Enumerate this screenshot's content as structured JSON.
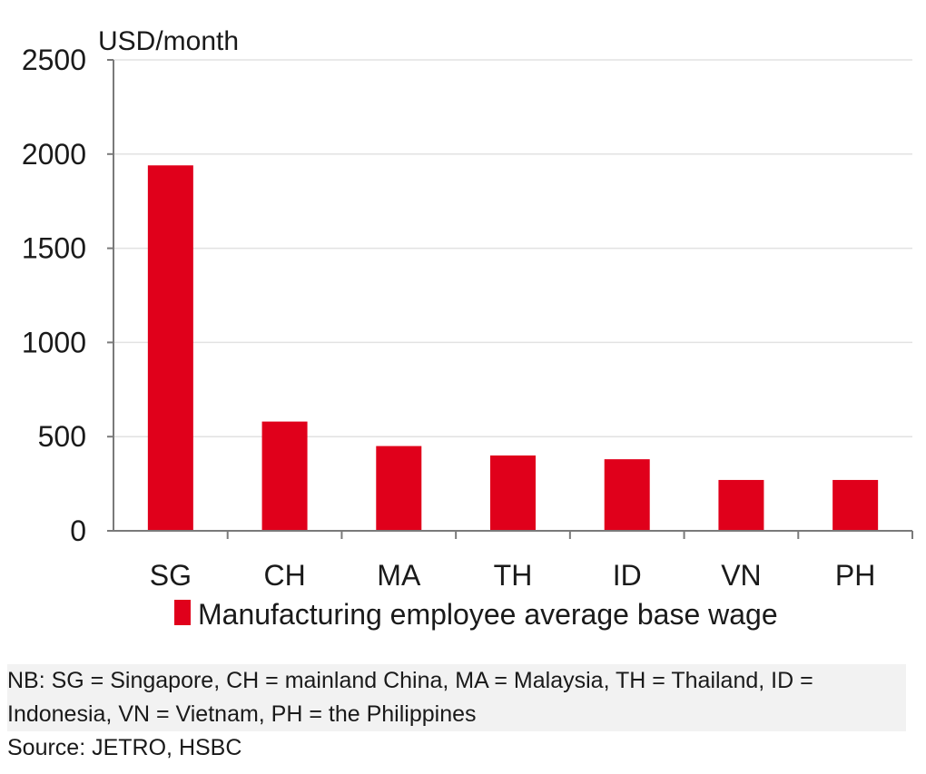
{
  "chart_data": {
    "type": "bar",
    "ylabel": "USD/month",
    "xlabel": "",
    "ylim": [
      0,
      2500
    ],
    "yticks": [
      0,
      500,
      1000,
      1500,
      2000,
      2500
    ],
    "categories": [
      "SG",
      "CH",
      "MA",
      "TH",
      "ID",
      "VN",
      "PH"
    ],
    "series": [
      {
        "name": "Manufacturing employee average base wage",
        "values": [
          1940,
          580,
          450,
          400,
          380,
          270,
          270
        ],
        "color": "#e0001b"
      }
    ],
    "grid": true,
    "legend_position": "bottom"
  },
  "notes": {
    "nb": "NB: SG = Singapore, CH = mainland China, MA = Malaysia, TH = Thailand, ID = Indonesia, VN = Vietnam, PH = the Philippines",
    "source": "Source: JETRO, HSBC"
  }
}
